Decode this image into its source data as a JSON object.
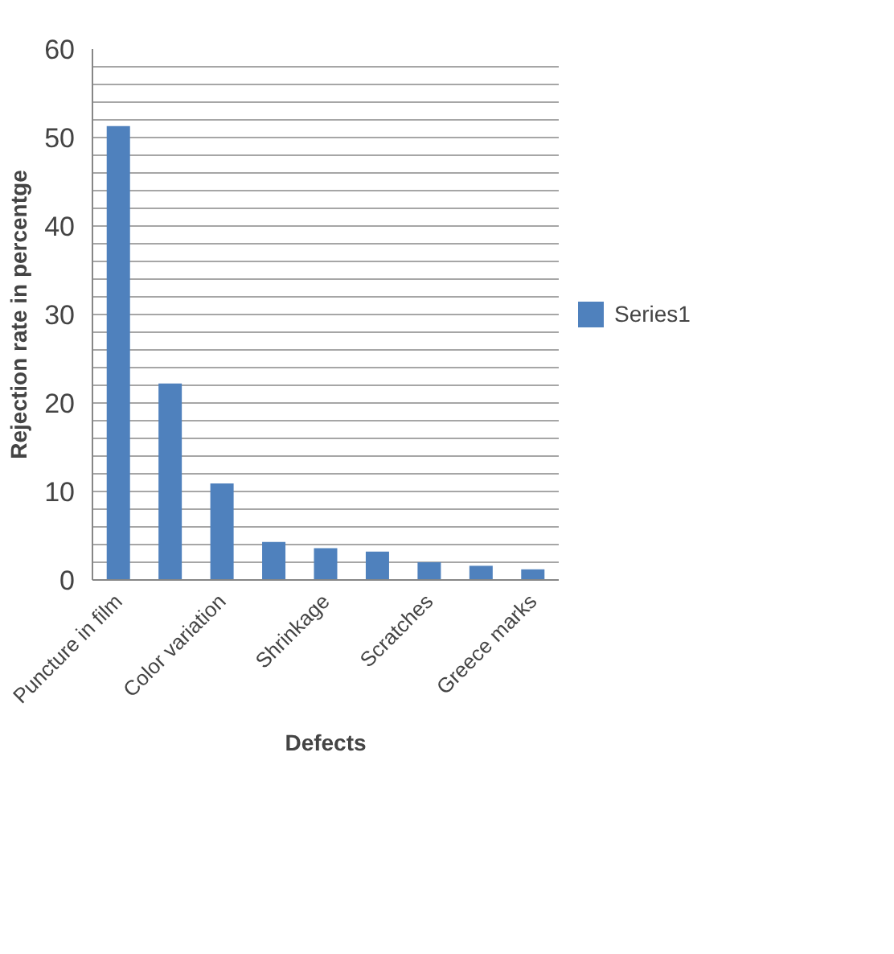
{
  "chart_data": {
    "type": "bar",
    "xlabel": "Defects",
    "ylabel": "Rejection rate in percentge",
    "categories": [
      "Puncture in film",
      null,
      "Color variation",
      null,
      "Shrinkage",
      null,
      "Scratches",
      null,
      "Greece marks"
    ],
    "series": [
      {
        "name": "Series1",
        "color": "#4f81bd",
        "values": [
          51.3,
          22.2,
          10.9,
          4.3,
          3.6,
          3.2,
          2.0,
          1.6,
          1.2
        ]
      }
    ],
    "ylim": [
      0,
      60
    ],
    "yticks": [
      0,
      {
        "value": 2,
        "label": null
      },
      {
        "value": 4,
        "label": null
      },
      {
        "value": 6,
        "label": null
      },
      {
        "value": 8,
        "label": null
      },
      10,
      {
        "value": 12,
        "label": null
      },
      {
        "value": 14,
        "label": null
      },
      {
        "value": 16,
        "label": null
      },
      {
        "value": 18,
        "label": null
      },
      20,
      {
        "value": 22,
        "label": null
      },
      {
        "value": 24,
        "label": null
      },
      {
        "value": 26,
        "label": null
      },
      {
        "value": 28,
        "label": null
      },
      30,
      {
        "value": 32,
        "label": null
      },
      {
        "value": 34,
        "label": null
      },
      {
        "value": 36,
        "label": null
      },
      {
        "value": 38,
        "label": null
      },
      40,
      {
        "value": 42,
        "label": null
      },
      {
        "value": 44,
        "label": null
      },
      {
        "value": 46,
        "label": null
      },
      {
        "value": 48,
        "label": null
      },
      50,
      {
        "value": 52,
        "label": null
      },
      {
        "value": 54,
        "label": null
      },
      {
        "value": 56,
        "label": null
      },
      {
        "value": 58,
        "label": null
      },
      60
    ],
    "grid": "y",
    "legend": "right"
  }
}
